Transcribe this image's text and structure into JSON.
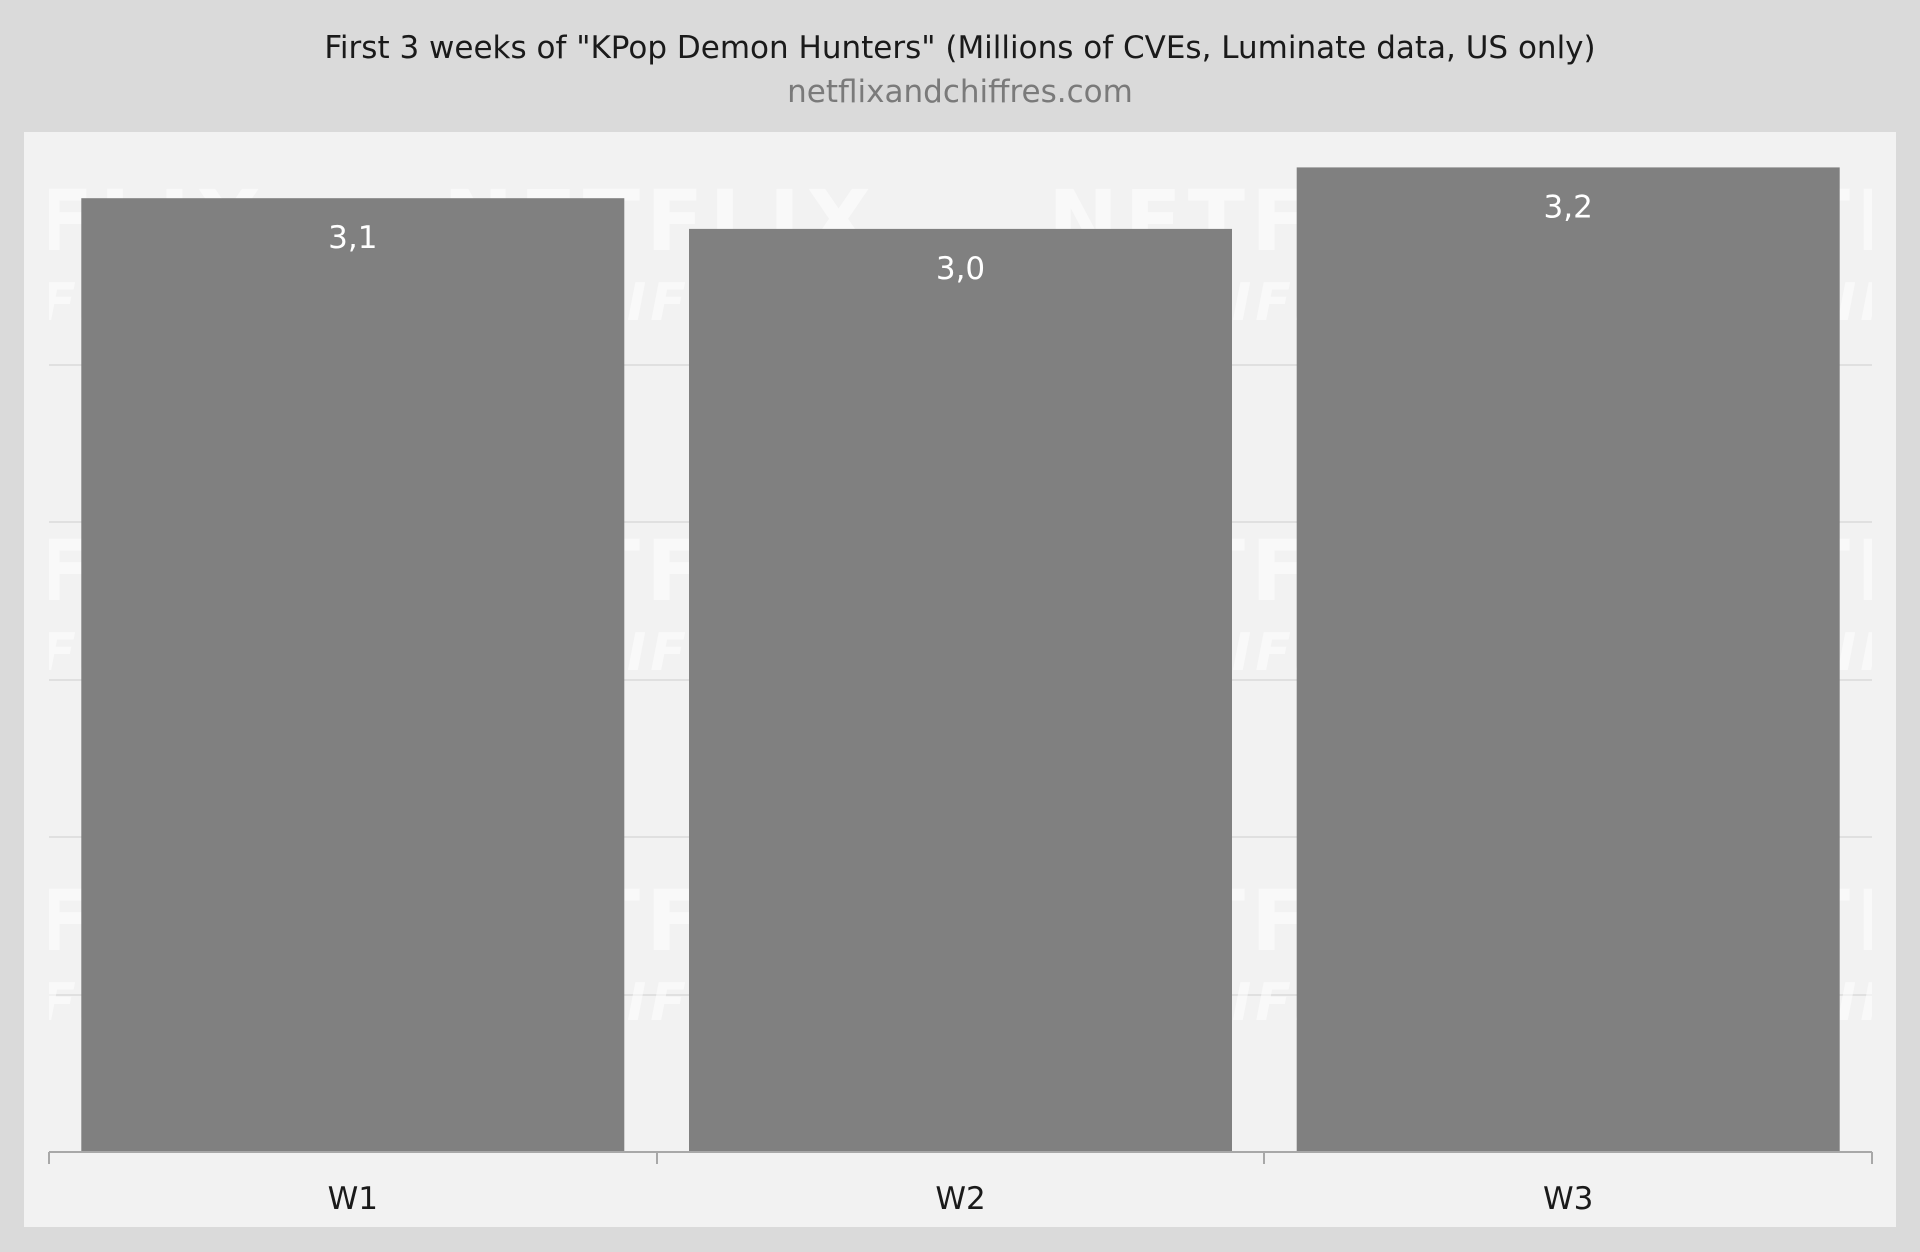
{
  "chart_data": {
    "type": "bar",
    "title": "First 3 weeks of \"KPop Demon Hunters\" (Millions of CVEs, Luminate data, US only)",
    "subtitle": "netflixandchiffres.com",
    "categories": [
      "W1",
      "W2",
      "W3"
    ],
    "values": [
      3.1,
      3.0,
      3.2
    ],
    "value_labels": [
      "3,1",
      "3,0",
      "3,2"
    ],
    "ylim": [
      0,
      3.25
    ],
    "grid": true,
    "colors": {
      "bar": "#808080",
      "plot_background": "#f2f2f2",
      "page_background": "#dadada",
      "grid": "#e0e0e0"
    },
    "watermark": {
      "line1": "NETFLIX",
      "line2": "& CHIFFRES"
    }
  }
}
